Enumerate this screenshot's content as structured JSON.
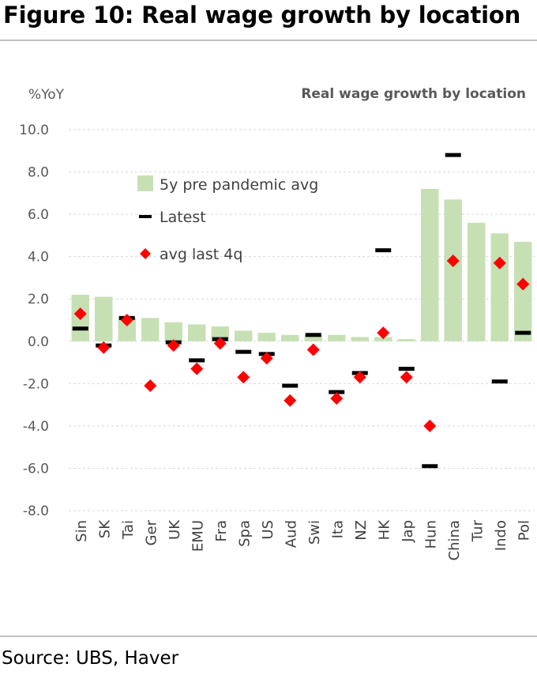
{
  "figure": {
    "title": "Figure 10: Real wage growth by location",
    "source": "Source: UBS, Haver"
  },
  "chart_data": {
    "type": "bar",
    "title": "Real wage growth by location",
    "ylabel": "%YoY",
    "ylim": [
      -8,
      10
    ],
    "yticks": [
      "10.0",
      "8.0",
      "6.0",
      "4.0",
      "2.0",
      "0.0",
      "-2.0",
      "-4.0",
      "-6.0",
      "-8.0"
    ],
    "grid": true,
    "legend_position": "upper-left",
    "categories": [
      "Sin",
      "SK",
      "Tai",
      "Ger",
      "UK",
      "EMU",
      "Fra",
      "Spa",
      "US",
      "Aud",
      "Swi",
      "Ita",
      "NZ",
      "HK",
      "Jap",
      "Hun",
      "China",
      "Tur",
      "Indo",
      "Pol"
    ],
    "series": [
      {
        "name": "5y pre pandemic avg",
        "kind": "bar",
        "color": "#c6e0b4",
        "values": [
          2.2,
          2.1,
          1.1,
          1.1,
          0.9,
          0.8,
          0.7,
          0.5,
          0.4,
          0.3,
          0.3,
          0.3,
          0.2,
          0.2,
          0.1,
          7.2,
          6.7,
          5.6,
          5.1,
          4.7
        ]
      },
      {
        "name": "Latest",
        "kind": "dash",
        "color": "#000000",
        "values": [
          0.6,
          -0.2,
          1.1,
          null,
          -0.05,
          -0.9,
          0.1,
          -0.5,
          -0.6,
          -2.1,
          0.3,
          -2.4,
          -1.5,
          4.3,
          -1.3,
          -5.9,
          8.8,
          null,
          -1.9,
          0.4
        ]
      },
      {
        "name": "avg last 4q",
        "kind": "diamond",
        "color": "#ff0000",
        "values": [
          1.3,
          -0.3,
          1.0,
          -2.1,
          -0.2,
          -1.3,
          -0.1,
          -1.7,
          -0.8,
          -2.8,
          -0.4,
          -2.7,
          -1.7,
          0.4,
          -1.7,
          -4.0,
          3.8,
          null,
          3.7,
          2.7
        ]
      }
    ]
  }
}
